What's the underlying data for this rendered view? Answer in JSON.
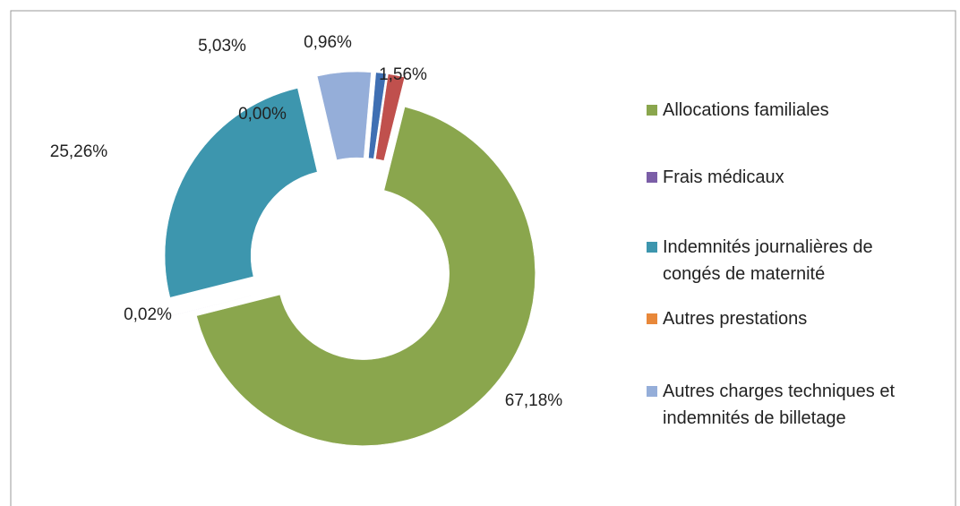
{
  "chart_data": {
    "type": "donut",
    "categories": [
      "Allocations familiales",
      "Frais médicaux",
      "Indemnités journalières de congés de maternité",
      "Autres prestations",
      "Autres charges techniques et indemnités de billetage",
      null,
      null
    ],
    "values": [
      67.18,
      0.02,
      25.26,
      0.0,
      5.03,
      0.96,
      1.56
    ],
    "value_labels": [
      "67,18%",
      "0,02%",
      "25,26%",
      "0,00%",
      "5,03%",
      "0,96%",
      "1,56%"
    ],
    "colors": [
      "#8aa64d",
      "#7b5ea7",
      "#3d96ae",
      "#e8883a",
      "#95aed9",
      "#3f6fb3",
      "#c0504d"
    ],
    "legend": "right"
  }
}
